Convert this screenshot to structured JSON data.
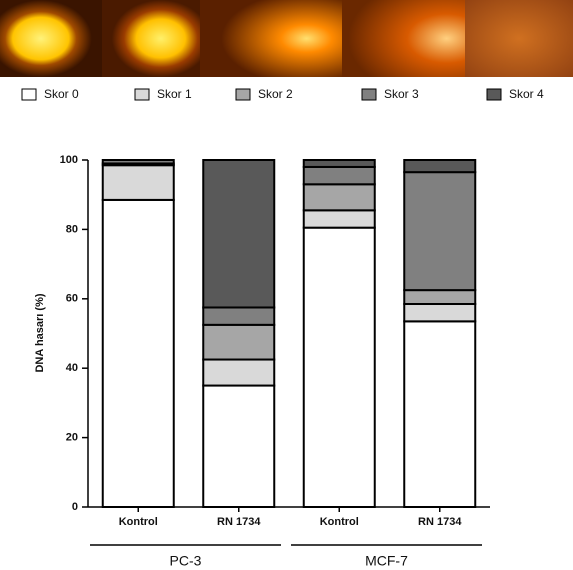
{
  "chart_data": {
    "type": "stacked-bar",
    "categories": [
      "Kontrol",
      "RN 1734",
      "Kontrol",
      "RN 1734"
    ],
    "groups": [
      "PC-3",
      "MCF-7"
    ],
    "y_label": "DNA hasarı (%)",
    "ylim": [
      0,
      100
    ],
    "yticks": [
      0,
      20,
      40,
      60,
      80,
      100
    ],
    "series": [
      {
        "name": "Skor 0",
        "color": "#ffffff",
        "values": [
          88.5,
          35,
          80.5,
          53.5
        ]
      },
      {
        "name": "Skor 1",
        "color": "#d9d9d9",
        "values": [
          10,
          7.5,
          5,
          5
        ]
      },
      {
        "name": "Skor 2",
        "color": "#a6a6a6",
        "values": [
          0.5,
          10,
          7.5,
          4
        ]
      },
      {
        "name": "Skor 3",
        "color": "#808080",
        "values": [
          1,
          5,
          5,
          34
        ]
      },
      {
        "name": "Skor 4",
        "color": "#595959",
        "values": [
          0,
          42.5,
          2,
          3.5
        ]
      }
    ]
  }
}
